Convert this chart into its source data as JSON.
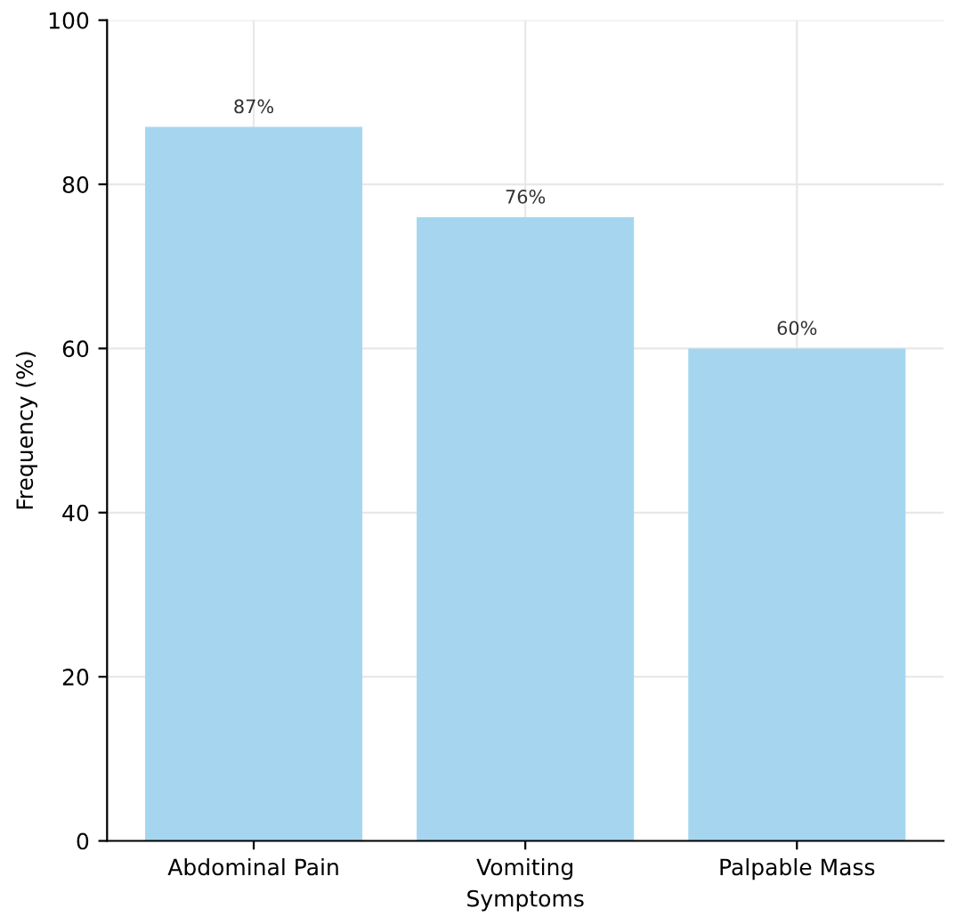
{
  "chart_data": {
    "type": "bar",
    "xlabel": "Symptoms",
    "ylabel": "Frequency (%)",
    "categories": [
      "Abdominal Pain",
      "Vomiting",
      "Palpable Mass"
    ],
    "values": [
      87,
      76,
      60
    ],
    "value_labels": [
      "87%",
      "76%",
      "60%"
    ],
    "color": "#a6d6ef",
    "ylim": [
      0,
      100
    ],
    "yticks": [
      0,
      20,
      40,
      60,
      80,
      100
    ],
    "grid": true
  }
}
